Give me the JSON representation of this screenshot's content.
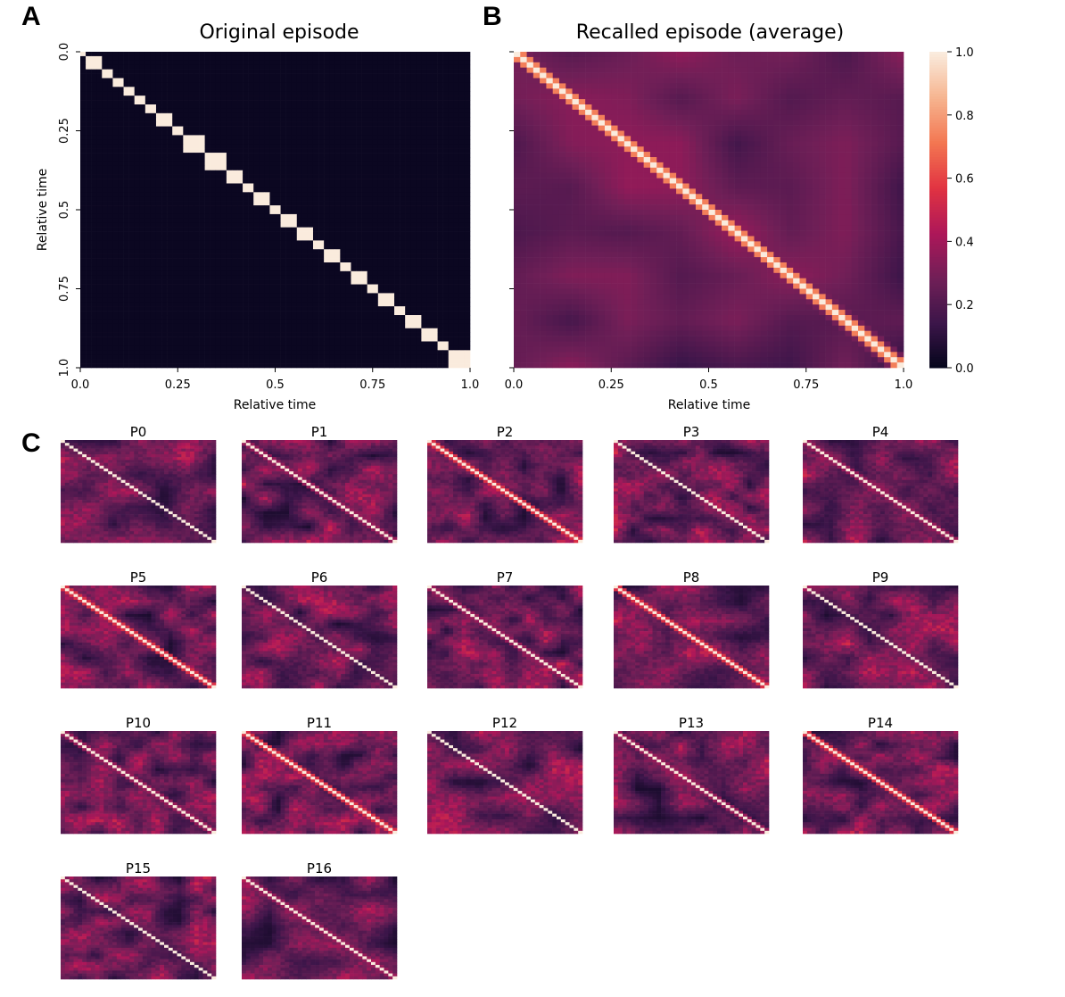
{
  "panel_labels": {
    "a": "A",
    "b": "B",
    "c": "C"
  },
  "colorbar": {
    "ticks": [
      "0.0",
      "0.2",
      "0.4",
      "0.6",
      "0.8",
      "1.0"
    ],
    "range": [
      0.0,
      1.0
    ],
    "colormap": "rocket",
    "colors": [
      "#03051a",
      "#3b1549",
      "#701f57",
      "#ad1759",
      "#e13342",
      "#f37651",
      "#f6b48f",
      "#faebdd"
    ]
  },
  "chart_data": [
    {
      "type": "heatmap",
      "panel": "A",
      "title": "Original episode",
      "xlabel": "Relative time",
      "ylabel": "Relative time",
      "xticks": [
        "0.0",
        "0.25",
        "0.5",
        "0.75",
        "1.0"
      ],
      "yticks": [
        "0.0",
        "0.25",
        "0.5",
        "0.75",
        "1.0"
      ],
      "xlim": [
        0,
        1
      ],
      "ylim": [
        0,
        1
      ],
      "value_range": [
        0,
        1
      ],
      "description_values": {
        "structure": "block-diagonal",
        "block_boundaries": [
          0,
          0.02,
          0.05,
          0.08,
          0.11,
          0.14,
          0.17,
          0.2,
          0.23,
          0.27,
          0.32,
          0.37,
          0.41,
          0.44,
          0.48,
          0.51,
          0.55,
          0.6,
          0.63,
          0.67,
          0.7,
          0.73,
          0.77,
          0.81,
          0.84,
          0.88,
          0.91,
          0.95,
          1.0
        ],
        "off_diagonal_level": 0.02,
        "diagonal_level": 1.0
      }
    },
    {
      "type": "heatmap",
      "panel": "B",
      "title": "Recalled episode (average)",
      "xlabel": "Relative time",
      "ylabel": "",
      "xticks": [
        "0.0",
        "0.25",
        "0.5",
        "0.75",
        "1.0"
      ],
      "xlim": [
        0,
        1
      ],
      "ylim": [
        0,
        1
      ],
      "value_range": [
        0,
        1
      ],
      "description_values": {
        "structure": "smooth diagonal band",
        "band_width": 0.03,
        "off_diagonal_mean": 0.22,
        "diagonal_level": 1.0
      }
    },
    {
      "type": "heatmap",
      "panel": "C",
      "participants": [
        "P0",
        "P1",
        "P2",
        "P3",
        "P4",
        "P5",
        "P6",
        "P7",
        "P8",
        "P9",
        "P10",
        "P11",
        "P12",
        "P13",
        "P14",
        "P15",
        "P16"
      ],
      "value_range": [
        0,
        1
      ],
      "description_values": {
        "structure": "diagonal band with noisy off-diagonal",
        "off_diagonal_mean": 0.28
      }
    }
  ]
}
